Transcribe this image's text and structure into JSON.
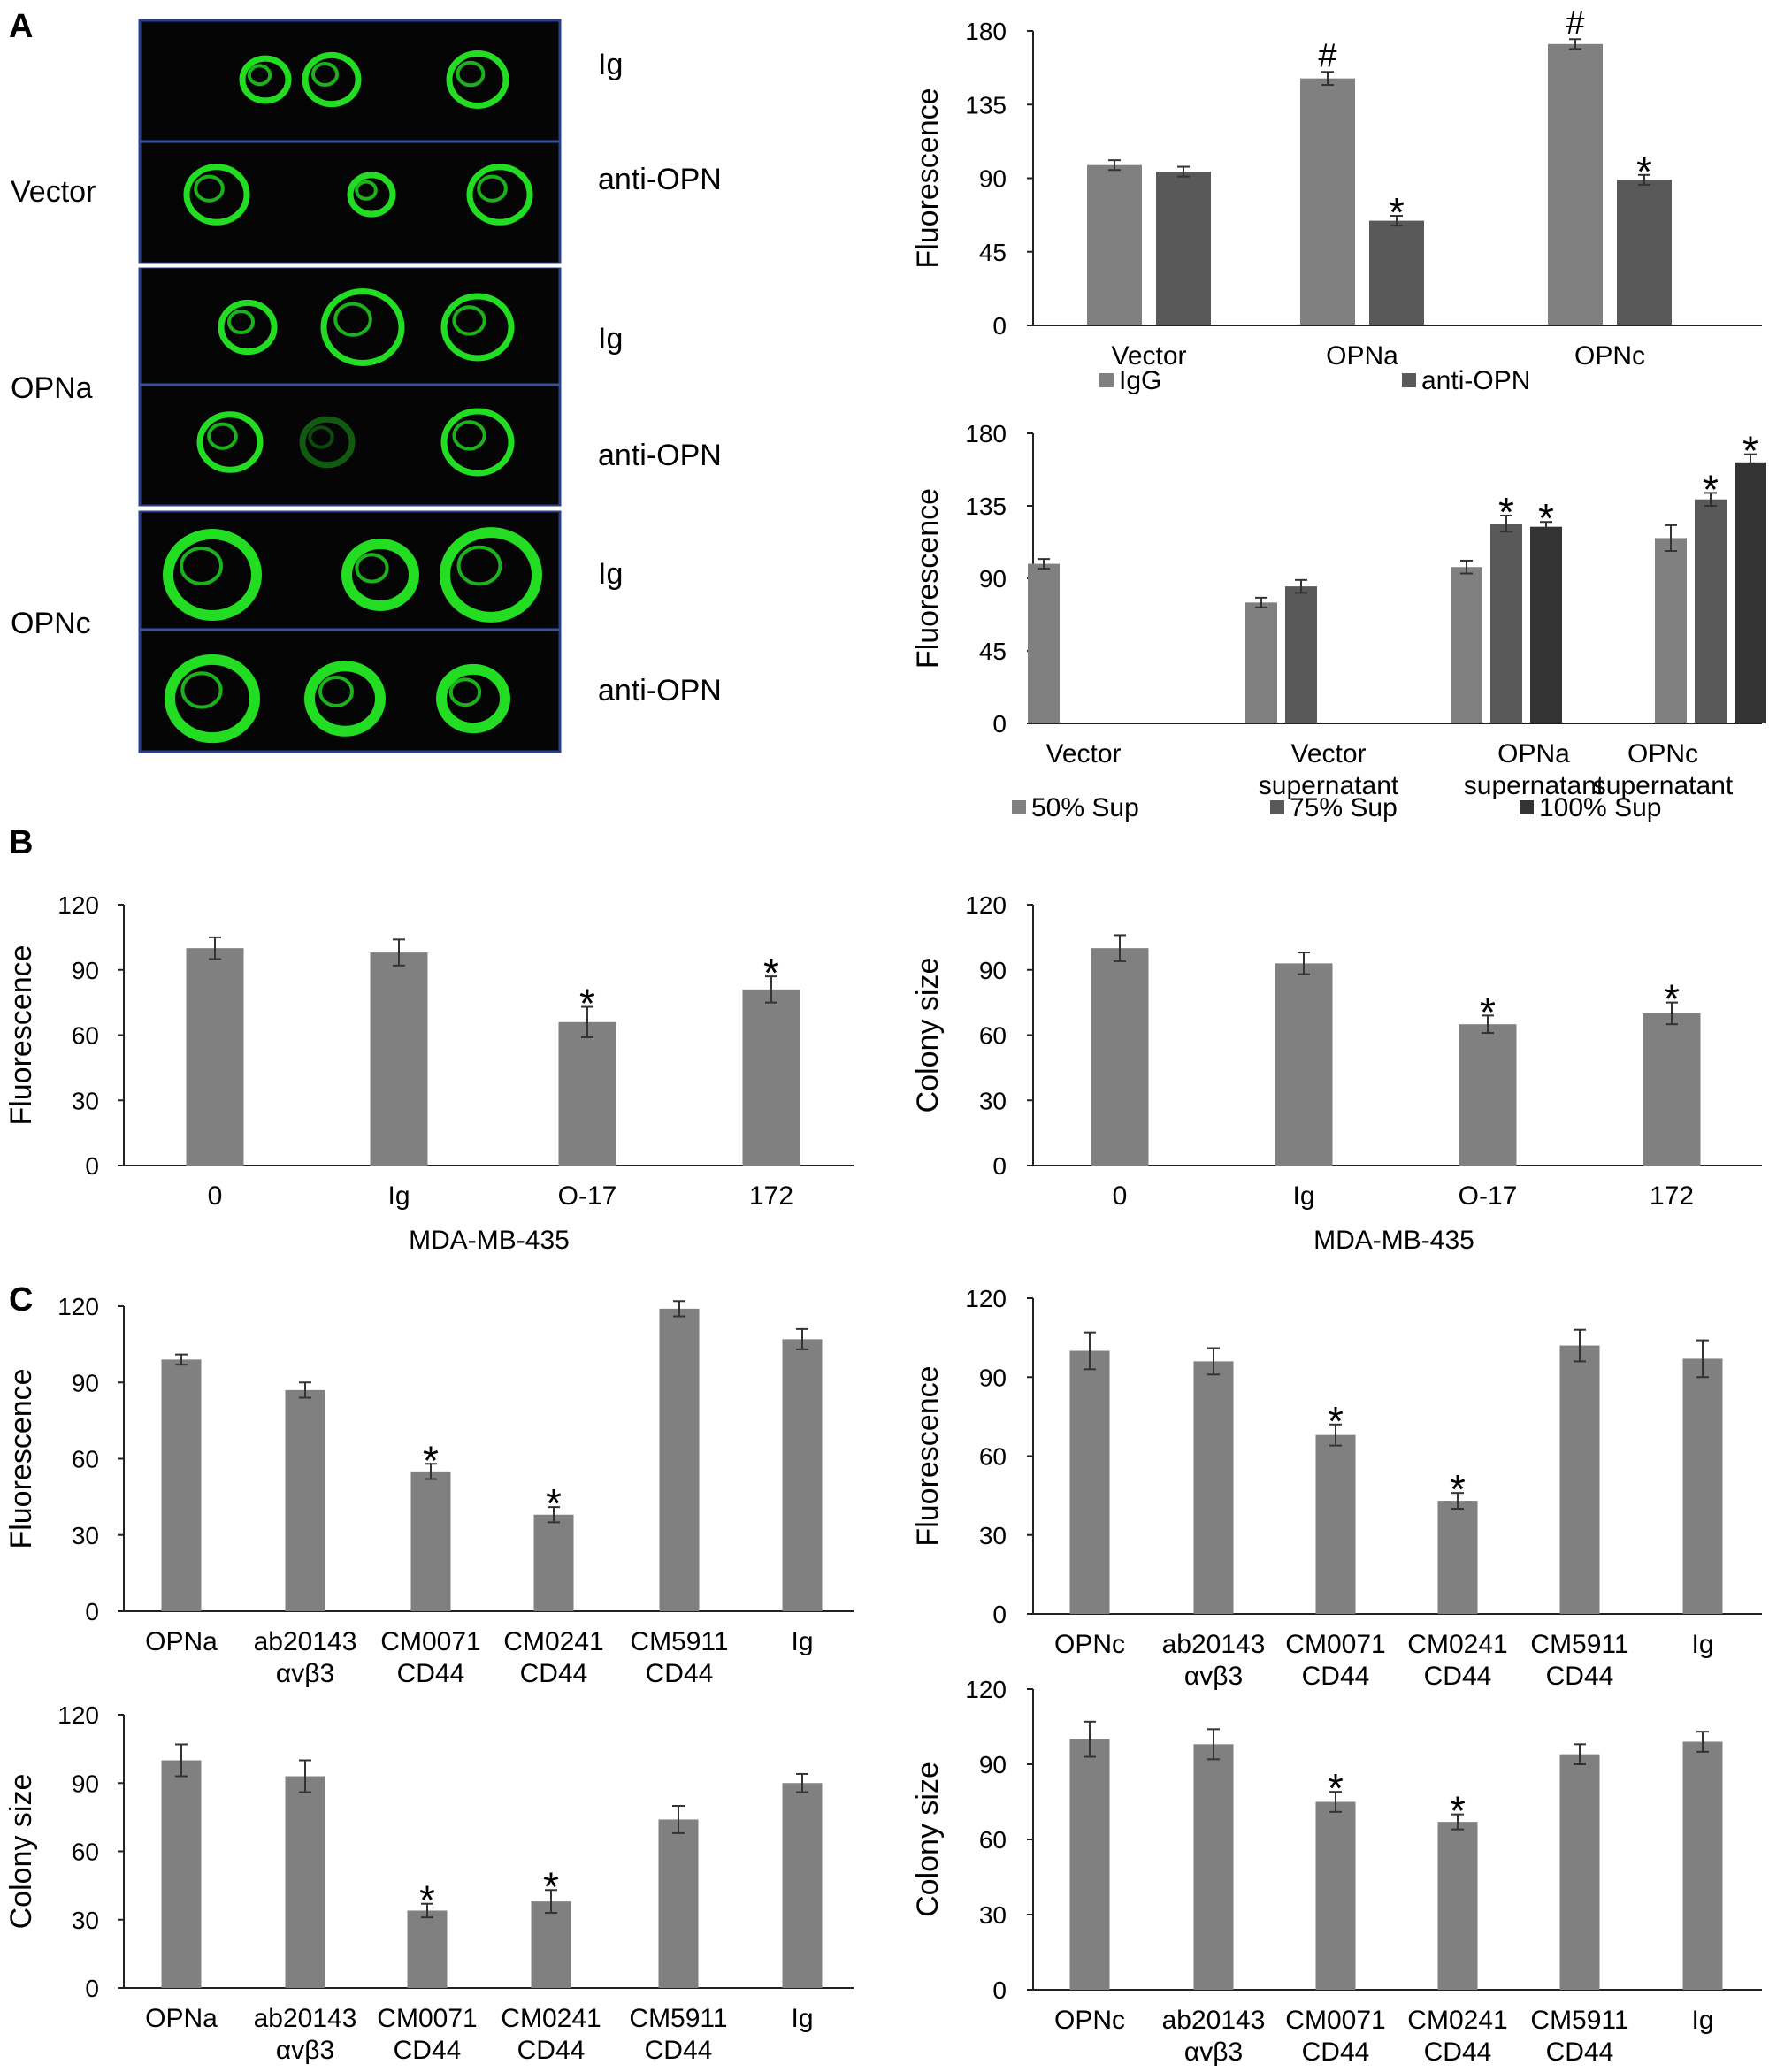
{
  "panel_labels": [
    "A",
    "B",
    "C"
  ],
  "microscopy": {
    "groups": [
      {
        "label": "Vector",
        "rows": [
          "Ig",
          "anti-OPN"
        ]
      },
      {
        "label": "OPNa",
        "rows": [
          "Ig",
          "anti-OPN"
        ]
      },
      {
        "label": "OPNc",
        "rows": [
          "Ig",
          "anti-OPN"
        ]
      }
    ]
  },
  "colors": {
    "bar_light": "#808080",
    "bar_mid": "#595959",
    "bar_dark": "#333333",
    "cell_green": "#22dd22"
  },
  "chart_data": [
    {
      "id": "A1",
      "panel": "A",
      "type": "bar",
      "categories": [
        [
          "Vector"
        ],
        [
          "OPNa"
        ],
        [
          "OPNc"
        ]
      ],
      "series": [
        {
          "name": "IgG",
          "values": [
            98,
            151,
            172
          ],
          "errors": [
            3,
            4,
            3
          ]
        },
        {
          "name": "anti-OPN",
          "values": [
            94,
            64,
            89
          ],
          "errors": [
            3,
            3,
            3
          ]
        }
      ],
      "markers": [
        {
          "cat": 1,
          "series": 0,
          "symbol": "#"
        },
        {
          "cat": 2,
          "series": 0,
          "symbol": "#"
        },
        {
          "cat": 1,
          "series": 1,
          "symbol": "*"
        },
        {
          "cat": 2,
          "series": 1,
          "symbol": "*"
        }
      ],
      "ylabel": "Fluorescence",
      "xlabel": "",
      "ylim": [
        0,
        180
      ],
      "yticks": [
        0,
        45,
        90,
        135,
        180
      ],
      "legend_position": "bottom"
    },
    {
      "id": "A2",
      "panel": "A",
      "type": "bar",
      "categories": [
        [
          "Vector"
        ],
        [
          "Vector",
          "supernatant"
        ],
        [
          "OPNa",
          "supernatant"
        ],
        [
          "OPNc",
          "supernatant"
        ]
      ],
      "series": [
        {
          "name": "50% Sup",
          "values": [
            99,
            75,
            97,
            115
          ],
          "errors": [
            3,
            3,
            4,
            8
          ]
        },
        {
          "name": "75% Sup",
          "values": [
            null,
            85,
            124,
            139
          ],
          "errors": [
            null,
            4,
            5,
            4
          ]
        },
        {
          "name": "100% Sup",
          "values": [
            null,
            null,
            122,
            162
          ],
          "errors": [
            null,
            null,
            3,
            5
          ]
        }
      ],
      "markers": [
        {
          "cat": 2,
          "series": 1,
          "symbol": "*"
        },
        {
          "cat": 2,
          "series": 2,
          "symbol": "*"
        },
        {
          "cat": 3,
          "series": 1,
          "symbol": "*"
        },
        {
          "cat": 3,
          "series": 2,
          "symbol": "*"
        }
      ],
      "ylabel": "Fluorescence",
      "xlabel": "",
      "ylim": [
        0,
        180
      ],
      "yticks": [
        0,
        45,
        90,
        135,
        180
      ],
      "legend_position": "bottom"
    },
    {
      "id": "B1",
      "panel": "B",
      "type": "bar",
      "categories": [
        [
          "0"
        ],
        [
          "Ig"
        ],
        [
          "O-17"
        ],
        [
          "172"
        ]
      ],
      "series": [
        {
          "name": "",
          "values": [
            100,
            98,
            66,
            81
          ],
          "errors": [
            5,
            6,
            7,
            6
          ]
        }
      ],
      "markers": [
        {
          "cat": 2,
          "series": 0,
          "symbol": "*"
        },
        {
          "cat": 3,
          "series": 0,
          "symbol": "*"
        }
      ],
      "ylabel": "Fluorescence",
      "xlabel": "MDA-MB-435",
      "ylim": [
        0,
        120
      ],
      "yticks": [
        0,
        30,
        60,
        90,
        120
      ]
    },
    {
      "id": "B2",
      "panel": "B",
      "type": "bar",
      "categories": [
        [
          "0"
        ],
        [
          "Ig"
        ],
        [
          "O-17"
        ],
        [
          "172"
        ]
      ],
      "series": [
        {
          "name": "",
          "values": [
            100,
            93,
            65,
            70
          ],
          "errors": [
            6,
            5,
            4,
            5
          ]
        }
      ],
      "markers": [
        {
          "cat": 2,
          "series": 0,
          "symbol": "*"
        },
        {
          "cat": 3,
          "series": 0,
          "symbol": "*"
        }
      ],
      "ylabel": "Colony size",
      "xlabel": "MDA-MB-435",
      "ylim": [
        0,
        120
      ],
      "yticks": [
        0,
        30,
        60,
        90,
        120
      ]
    },
    {
      "id": "C1",
      "panel": "C",
      "type": "bar",
      "categories": [
        [
          "OPNa"
        ],
        [
          "ab20143",
          "αvβ3"
        ],
        [
          "CM0071",
          "CD44"
        ],
        [
          "CM0241",
          "CD44"
        ],
        [
          "CM5911",
          "CD44"
        ],
        [
          "Ig"
        ]
      ],
      "series": [
        {
          "name": "",
          "values": [
            99,
            87,
            55,
            38,
            119,
            107
          ],
          "errors": [
            2,
            3,
            3,
            3,
            3,
            4
          ]
        }
      ],
      "markers": [
        {
          "cat": 2,
          "series": 0,
          "symbol": "*"
        },
        {
          "cat": 3,
          "series": 0,
          "symbol": "*"
        }
      ],
      "ylabel": "Fluorescence",
      "xlabel": "",
      "ylim": [
        0,
        120
      ],
      "yticks": [
        0,
        30,
        60,
        90,
        120
      ]
    },
    {
      "id": "C2",
      "panel": "C",
      "type": "bar",
      "categories": [
        [
          "OPNc"
        ],
        [
          "ab20143",
          "αvβ3"
        ],
        [
          "CM0071",
          "CD44"
        ],
        [
          "CM0241",
          "CD44"
        ],
        [
          "CM5911",
          "CD44"
        ],
        [
          "Ig"
        ]
      ],
      "series": [
        {
          "name": "",
          "values": [
            100,
            96,
            68,
            43,
            102,
            97
          ],
          "errors": [
            7,
            5,
            4,
            3,
            6,
            7
          ]
        }
      ],
      "markers": [
        {
          "cat": 2,
          "series": 0,
          "symbol": "*"
        },
        {
          "cat": 3,
          "series": 0,
          "symbol": "*"
        }
      ],
      "ylabel": "Fluorescence",
      "xlabel": "",
      "ylim": [
        0,
        120
      ],
      "yticks": [
        0,
        30,
        60,
        90,
        120
      ]
    },
    {
      "id": "C3",
      "panel": "C",
      "type": "bar",
      "categories": [
        [
          "OPNa"
        ],
        [
          "ab20143",
          "αvβ3"
        ],
        [
          "CM0071",
          "CD44"
        ],
        [
          "CM0241",
          "CD44"
        ],
        [
          "CM5911",
          "CD44"
        ],
        [
          "Ig"
        ]
      ],
      "series": [
        {
          "name": "",
          "values": [
            100,
            93,
            34,
            38,
            74,
            90
          ],
          "errors": [
            7,
            7,
            3,
            5,
            6,
            4
          ]
        }
      ],
      "markers": [
        {
          "cat": 2,
          "series": 0,
          "symbol": "*"
        },
        {
          "cat": 3,
          "series": 0,
          "symbol": "*"
        }
      ],
      "ylabel": "Colony size",
      "xlabel": "",
      "ylim": [
        0,
        120
      ],
      "yticks": [
        0,
        30,
        60,
        90,
        120
      ]
    },
    {
      "id": "C4",
      "panel": "C",
      "type": "bar",
      "categories": [
        [
          "OPNc"
        ],
        [
          "ab20143",
          "αvβ3"
        ],
        [
          "CM0071",
          "CD44"
        ],
        [
          "CM0241",
          "CD44"
        ],
        [
          "CM5911",
          "CD44"
        ],
        [
          "Ig"
        ]
      ],
      "series": [
        {
          "name": "",
          "values": [
            100,
            98,
            75,
            67,
            94,
            99
          ],
          "errors": [
            7,
            6,
            4,
            3,
            4,
            4
          ]
        }
      ],
      "markers": [
        {
          "cat": 2,
          "series": 0,
          "symbol": "*"
        },
        {
          "cat": 3,
          "series": 0,
          "symbol": "*"
        }
      ],
      "ylabel": "Colony size",
      "xlabel": "",
      "ylim": [
        0,
        120
      ],
      "yticks": [
        0,
        30,
        60,
        90,
        120
      ]
    }
  ]
}
